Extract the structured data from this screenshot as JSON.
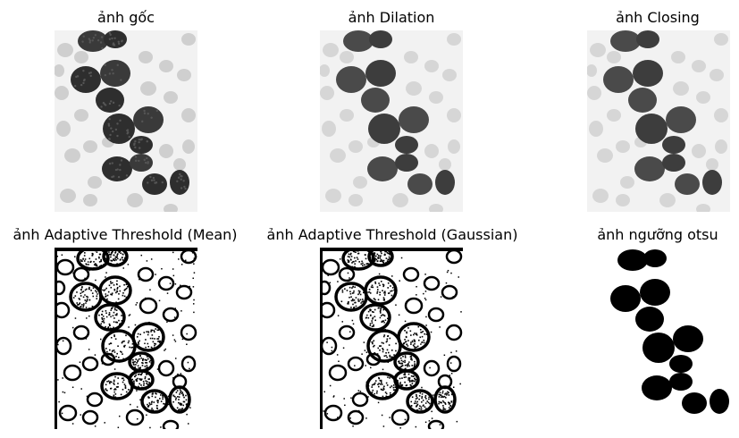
{
  "figure": {
    "panels": [
      {
        "id": "original",
        "title": "ảnh gốc",
        "style": "gray"
      },
      {
        "id": "dilation",
        "title": "ảnh Dilation",
        "style": "gray"
      },
      {
        "id": "closing",
        "title": "ảnh Closing",
        "style": "gray"
      },
      {
        "id": "adaptive-mean",
        "title": "ảnh Adaptive Threshold (Mean)",
        "style": "binary-edges"
      },
      {
        "id": "adaptive-gaussian",
        "title": "ảnh Adaptive Threshold (Gaussian)",
        "style": "binary-edges"
      },
      {
        "id": "otsu",
        "title": "ảnh ngưỡng otsu",
        "style": "binary-solid"
      }
    ]
  }
}
